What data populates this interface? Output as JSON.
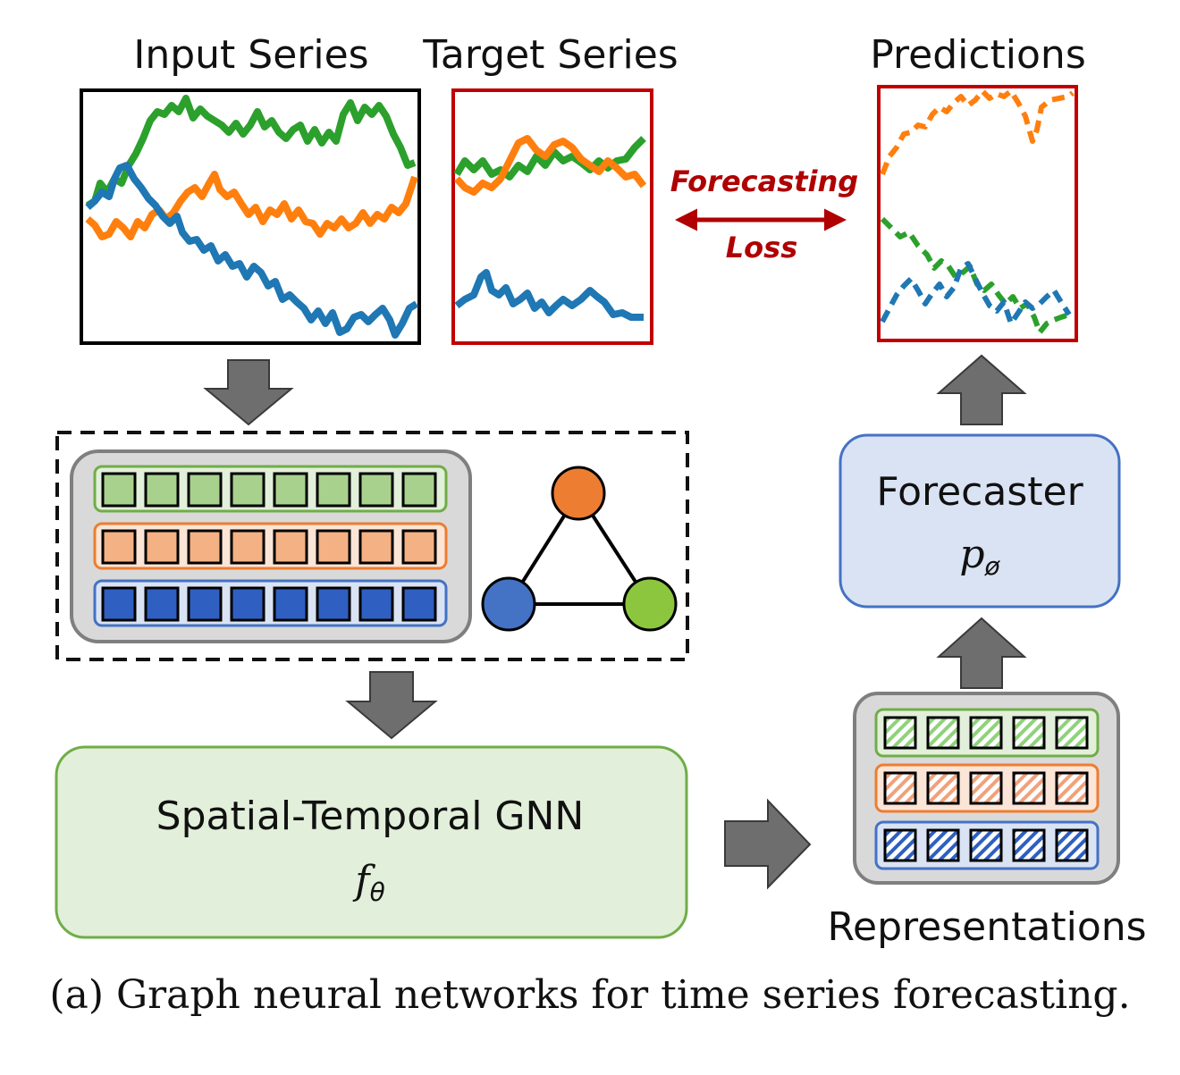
{
  "labels": {
    "input_series": "Input Series",
    "target_series": "Target Series",
    "predictions": "Predictions",
    "forecasting": "Forecasting",
    "loss": "Loss",
    "forecaster": "Forecaster",
    "forecaster_symbol": "p",
    "forecaster_subscript": "ø",
    "gnn": "Spatial-Temporal GNN",
    "gnn_symbol": "f",
    "gnn_subscript": "θ",
    "representations": "Representations",
    "caption": "(a) Graph neural networks for time series forecasting."
  },
  "colors": {
    "green": "#2ca02c",
    "orange": "#ff7f0e",
    "blue": "#1f77b4",
    "dark_red": "#b00000",
    "arrow_gray": "#6e6e6e",
    "box_gray": "#d9d9d9",
    "forecaster_fill": "#dae3f3",
    "forecaster_stroke": "#4472c4",
    "gnn_fill": "#e2efda",
    "gnn_stroke": "#70ad47",
    "node_orange": "#ed7d31",
    "node_blue": "#4472c4",
    "node_green": "#8cc63f"
  }
}
